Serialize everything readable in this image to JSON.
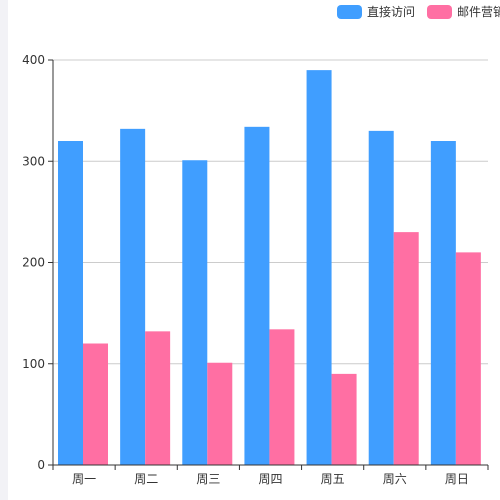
{
  "chart_data": {
    "type": "bar",
    "categories": [
      "周一",
      "周二",
      "周三",
      "周四",
      "周五",
      "周六",
      "周日"
    ],
    "series": [
      {
        "name": "直接访问",
        "values": [
          320,
          332,
          301,
          334,
          390,
          330,
          320
        ],
        "color": "#409eff"
      },
      {
        "name": "邮件营销",
        "values": [
          120,
          132,
          101,
          134,
          90,
          230,
          210
        ],
        "color": "#ff6fa3"
      }
    ],
    "ylim": [
      0,
      400
    ],
    "yticks": [
      0,
      100,
      200,
      300,
      400
    ],
    "grid": true,
    "legend_position": "top-right"
  }
}
